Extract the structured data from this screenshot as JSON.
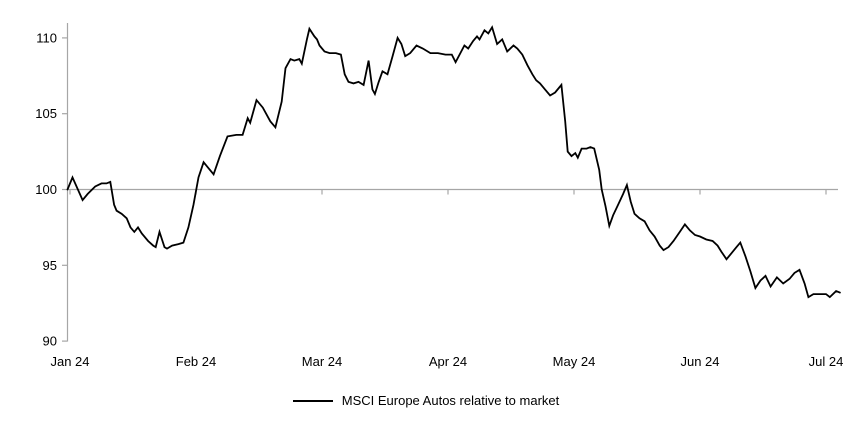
{
  "chart_data": {
    "type": "line",
    "title": "",
    "xlabel": "",
    "ylabel": "",
    "x_ticks": [
      "Jan 24",
      "Feb 24",
      "Mar 24",
      "Apr 24",
      "May 24",
      "Jun 24",
      "Jul 24"
    ],
    "y_ticks": [
      90,
      95,
      100,
      105,
      110
    ],
    "ylim": [
      90,
      110
    ],
    "baseline": 100,
    "grid": "none",
    "legend_position": "bottom-center",
    "axis_color": "#a6a6a6",
    "text_color": "#000000",
    "series": [
      {
        "name": "MSCI Europe Autos relative to market",
        "color": "#000000",
        "x_unit": "months since Jan 24 tick",
        "points": [
          [
            -0.02,
            100.0
          ],
          [
            0.02,
            100.8
          ],
          [
            0.1,
            99.3
          ],
          [
            0.14,
            99.7
          ],
          [
            0.2,
            100.2
          ],
          [
            0.25,
            100.4
          ],
          [
            0.29,
            100.4
          ],
          [
            0.32,
            100.5
          ],
          [
            0.35,
            99.0
          ],
          [
            0.37,
            98.6
          ],
          [
            0.41,
            98.4
          ],
          [
            0.45,
            98.1
          ],
          [
            0.48,
            97.5
          ],
          [
            0.51,
            97.2
          ],
          [
            0.54,
            97.5
          ],
          [
            0.57,
            97.1
          ],
          [
            0.62,
            96.6
          ],
          [
            0.66,
            96.3
          ],
          [
            0.68,
            96.2
          ],
          [
            0.71,
            97.2
          ],
          [
            0.75,
            96.2
          ],
          [
            0.77,
            96.1
          ],
          [
            0.81,
            96.3
          ],
          [
            0.86,
            96.4
          ],
          [
            0.9,
            96.5
          ],
          [
            0.94,
            97.5
          ],
          [
            0.98,
            99.0
          ],
          [
            1.02,
            100.8
          ],
          [
            1.06,
            101.8
          ],
          [
            1.1,
            101.4
          ],
          [
            1.14,
            101.0
          ],
          [
            1.19,
            102.2
          ],
          [
            1.25,
            103.5
          ],
          [
            1.32,
            103.6
          ],
          [
            1.37,
            103.6
          ],
          [
            1.41,
            104.7
          ],
          [
            1.43,
            104.4
          ],
          [
            1.48,
            105.9
          ],
          [
            1.53,
            105.4
          ],
          [
            1.59,
            104.5
          ],
          [
            1.63,
            104.1
          ],
          [
            1.68,
            105.8
          ],
          [
            1.71,
            108.0
          ],
          [
            1.75,
            108.6
          ],
          [
            1.78,
            108.5
          ],
          [
            1.82,
            108.6
          ],
          [
            1.84,
            108.3
          ],
          [
            1.88,
            109.9
          ],
          [
            1.9,
            110.6
          ],
          [
            1.94,
            110.1
          ],
          [
            1.96,
            109.9
          ],
          [
            1.98,
            109.5
          ],
          [
            2.02,
            109.1
          ],
          [
            2.06,
            109.0
          ],
          [
            2.11,
            109.0
          ],
          [
            2.15,
            108.9
          ],
          [
            2.18,
            107.6
          ],
          [
            2.21,
            107.1
          ],
          [
            2.25,
            107.0
          ],
          [
            2.29,
            107.1
          ],
          [
            2.33,
            106.9
          ],
          [
            2.37,
            108.5
          ],
          [
            2.4,
            106.6
          ],
          [
            2.42,
            106.3
          ],
          [
            2.45,
            107.1
          ],
          [
            2.48,
            107.8
          ],
          [
            2.52,
            107.6
          ],
          [
            2.56,
            108.8
          ],
          [
            2.6,
            110.0
          ],
          [
            2.63,
            109.6
          ],
          [
            2.66,
            108.8
          ],
          [
            2.7,
            109.0
          ],
          [
            2.75,
            109.5
          ],
          [
            2.8,
            109.3
          ],
          [
            2.86,
            109.0
          ],
          [
            2.92,
            109.0
          ],
          [
            2.98,
            108.9
          ],
          [
            3.03,
            108.9
          ],
          [
            3.06,
            108.4
          ],
          [
            3.13,
            109.5
          ],
          [
            3.16,
            109.3
          ],
          [
            3.2,
            109.8
          ],
          [
            3.23,
            110.1
          ],
          [
            3.25,
            109.9
          ],
          [
            3.29,
            110.5
          ],
          [
            3.32,
            110.3
          ],
          [
            3.35,
            110.7
          ],
          [
            3.39,
            109.6
          ],
          [
            3.43,
            109.9
          ],
          [
            3.47,
            109.1
          ],
          [
            3.52,
            109.5
          ],
          [
            3.55,
            109.3
          ],
          [
            3.59,
            108.9
          ],
          [
            3.63,
            108.2
          ],
          [
            3.67,
            107.6
          ],
          [
            3.7,
            107.2
          ],
          [
            3.73,
            107.0
          ],
          [
            3.77,
            106.6
          ],
          [
            3.81,
            106.2
          ],
          [
            3.85,
            106.4
          ],
          [
            3.9,
            106.9
          ],
          [
            3.93,
            104.5
          ],
          [
            3.95,
            102.5
          ],
          [
            3.98,
            102.2
          ],
          [
            4.01,
            102.4
          ],
          [
            4.03,
            102.1
          ],
          [
            4.06,
            102.7
          ],
          [
            4.1,
            102.7
          ],
          [
            4.13,
            102.8
          ],
          [
            4.16,
            102.7
          ],
          [
            4.2,
            101.3
          ],
          [
            4.22,
            100.0
          ],
          [
            4.25,
            98.9
          ],
          [
            4.28,
            97.6
          ],
          [
            4.31,
            98.3
          ],
          [
            4.35,
            99.0
          ],
          [
            4.39,
            99.7
          ],
          [
            4.42,
            100.3
          ],
          [
            4.45,
            99.2
          ],
          [
            4.48,
            98.4
          ],
          [
            4.52,
            98.1
          ],
          [
            4.56,
            97.9
          ],
          [
            4.6,
            97.3
          ],
          [
            4.64,
            96.9
          ],
          [
            4.68,
            96.3
          ],
          [
            4.71,
            96.0
          ],
          [
            4.75,
            96.2
          ],
          [
            4.79,
            96.6
          ],
          [
            4.84,
            97.2
          ],
          [
            4.88,
            97.7
          ],
          [
            4.92,
            97.3
          ],
          [
            4.96,
            97.0
          ],
          [
            5.0,
            96.9
          ],
          [
            5.05,
            96.7
          ],
          [
            5.1,
            96.6
          ],
          [
            5.14,
            96.3
          ],
          [
            5.17,
            95.9
          ],
          [
            5.21,
            95.4
          ],
          [
            5.25,
            95.8
          ],
          [
            5.29,
            96.2
          ],
          [
            5.32,
            96.5
          ],
          [
            5.36,
            95.6
          ],
          [
            5.4,
            94.6
          ],
          [
            5.44,
            93.5
          ],
          [
            5.48,
            94.0
          ],
          [
            5.52,
            94.3
          ],
          [
            5.56,
            93.6
          ],
          [
            5.61,
            94.2
          ],
          [
            5.66,
            93.8
          ],
          [
            5.71,
            94.1
          ],
          [
            5.75,
            94.5
          ],
          [
            5.79,
            94.7
          ],
          [
            5.83,
            93.8
          ],
          [
            5.86,
            92.9
          ],
          [
            5.9,
            93.1
          ],
          [
            5.95,
            93.1
          ],
          [
            6.0,
            93.1
          ],
          [
            6.03,
            92.9
          ],
          [
            6.08,
            93.3
          ],
          [
            6.11,
            93.2
          ]
        ]
      }
    ]
  },
  "legend": {
    "label": "MSCI Europe Autos relative to market"
  }
}
